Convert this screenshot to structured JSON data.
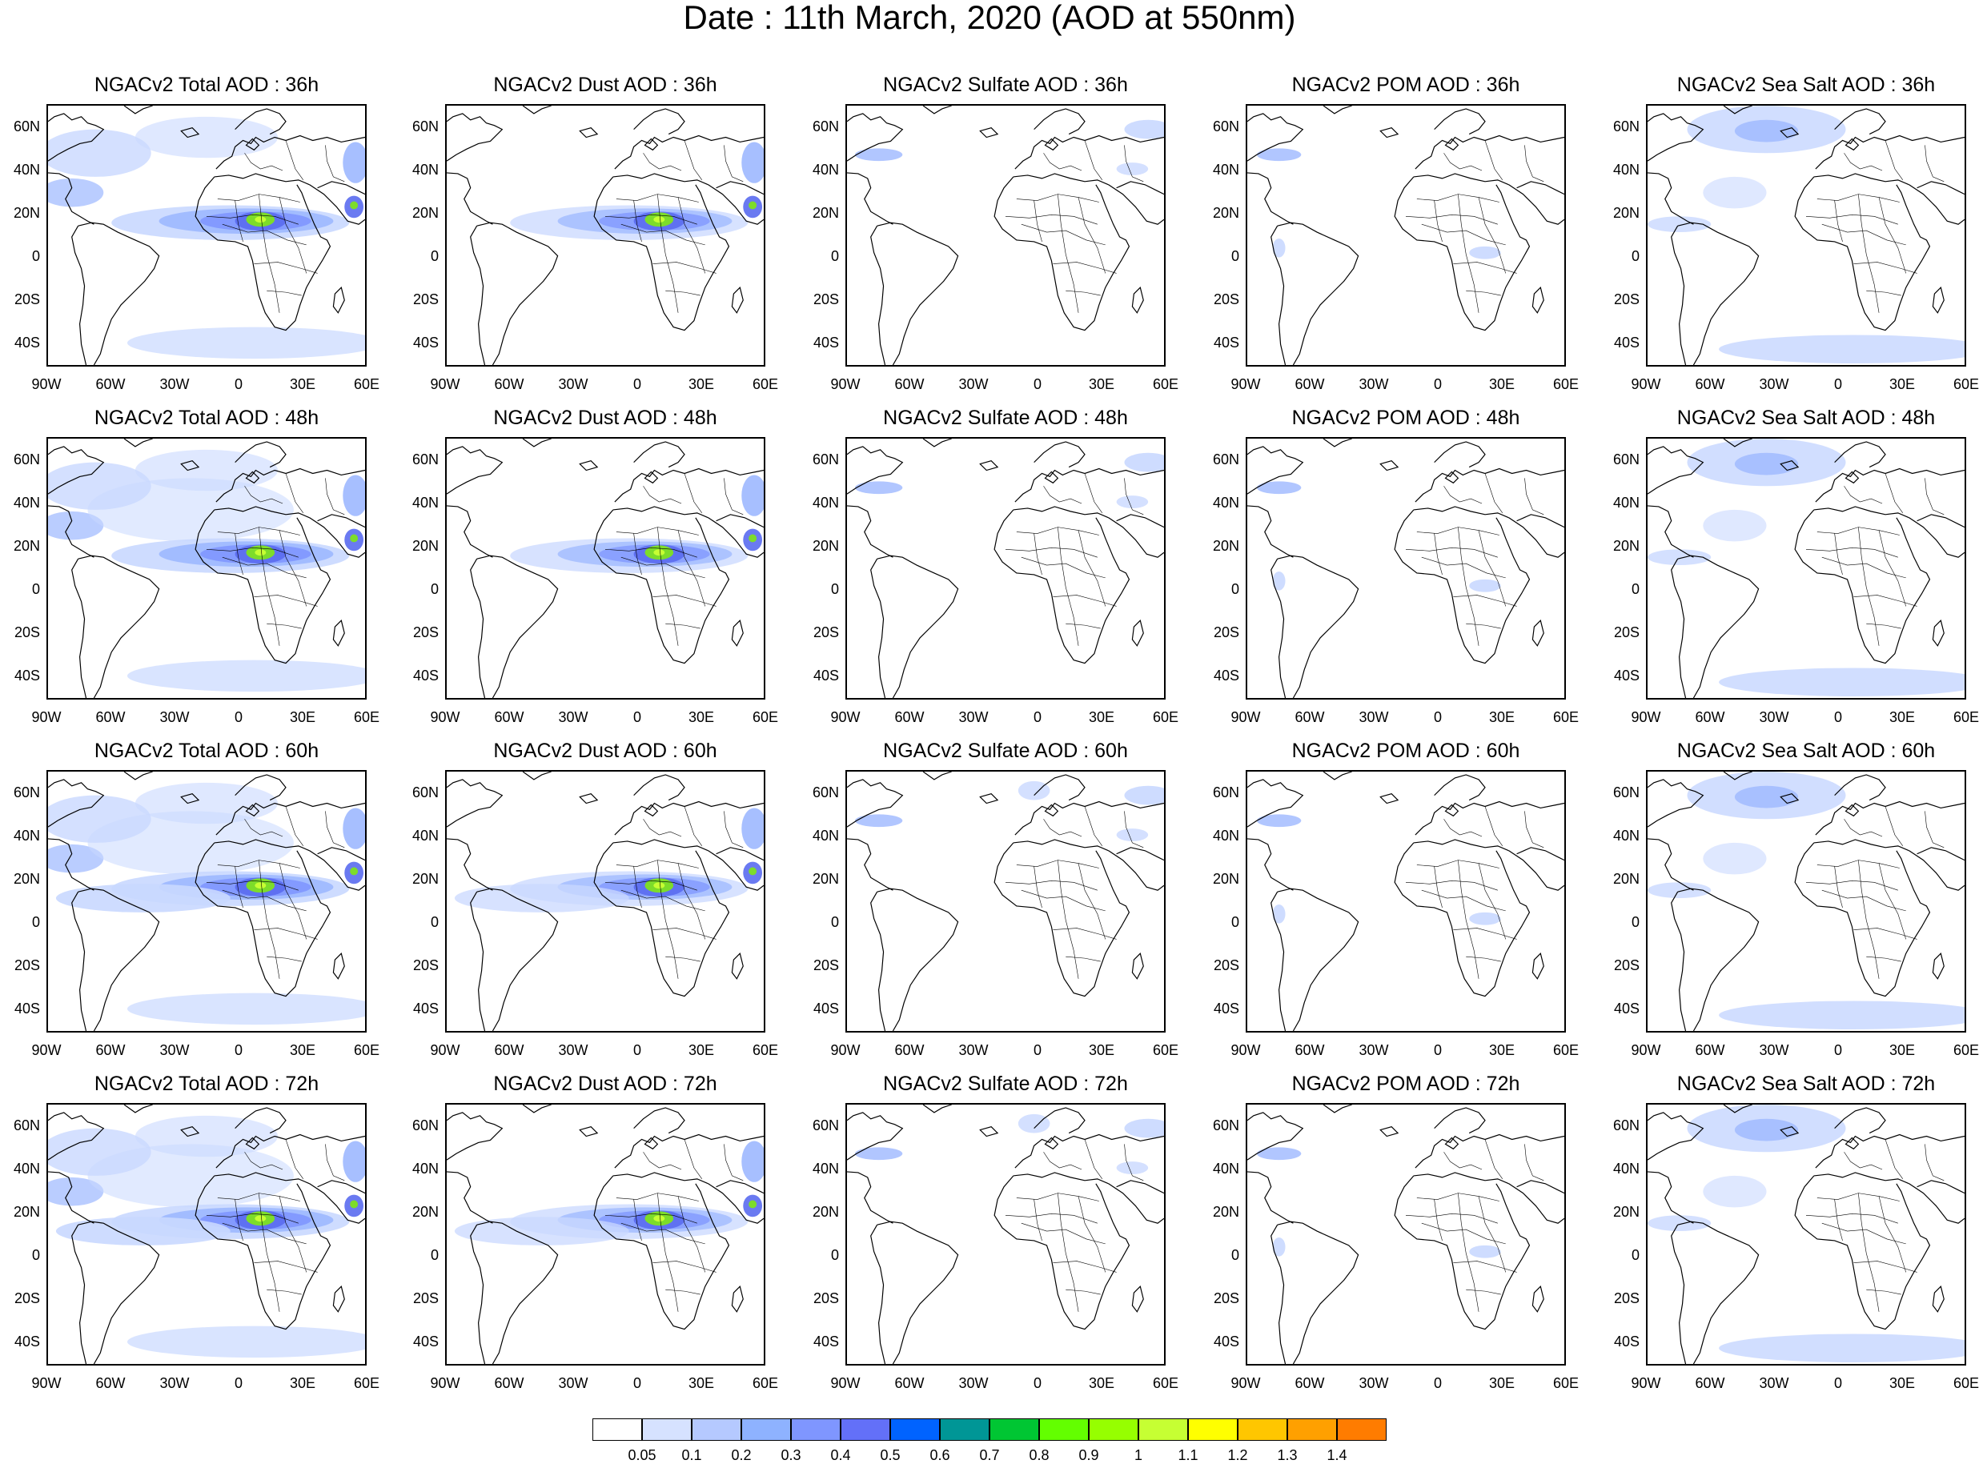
{
  "title": "Date : 11th March, 2020 (AOD at 550nm)",
  "panels": [
    [
      "NGACv2 Total AOD : 36h",
      "NGACv2 Dust AOD : 36h",
      "NGACv2 Sulfate AOD : 36h",
      "NGACv2 POM AOD : 36h",
      "NGACv2 Sea Salt AOD : 36h"
    ],
    [
      "NGACv2 Total AOD : 48h",
      "NGACv2 Dust AOD : 48h",
      "NGACv2 Sulfate AOD : 48h",
      "NGACv2 POM AOD : 48h",
      "NGACv2 Sea Salt AOD : 48h"
    ],
    [
      "NGACv2 Total AOD : 60h",
      "NGACv2 Dust AOD : 60h",
      "NGACv2 Sulfate AOD : 60h",
      "NGACv2 POM AOD : 60h",
      "NGACv2 Sea Salt AOD : 60h"
    ],
    [
      "NGACv2 Total AOD : 72h",
      "NGACv2 Dust AOD : 72h",
      "NGACv2 Sulfate AOD : 72h",
      "NGACv2 POM AOD : 72h",
      "NGACv2 Sea Salt  AOD : 72h"
    ]
  ],
  "lat_labels": [
    "60N",
    "40N",
    "20N",
    "0",
    "20S",
    "40S"
  ],
  "lon_labels": [
    "90W",
    "60W",
    "30W",
    "0",
    "30E",
    "60E"
  ],
  "colorbar": {
    "labels": [
      "0.05",
      "0.1",
      "0.2",
      "0.3",
      "0.4",
      "0.5",
      "0.6",
      "0.7",
      "0.8",
      "0.9",
      "1",
      "1.1",
      "1.2",
      "1.3",
      "1.4"
    ],
    "colors": [
      "#ffffff",
      "#d6e2ff",
      "#b5c9ff",
      "#8eb2ff",
      "#7f96ff",
      "#6370f8",
      "#0063ff",
      "#009696",
      "#00c633",
      "#63ff00",
      "#96ff00",
      "#c6ff33",
      "#ffff00",
      "#ffc600",
      "#ffa000",
      "#ff7c00",
      "#ff1900"
    ]
  }
}
